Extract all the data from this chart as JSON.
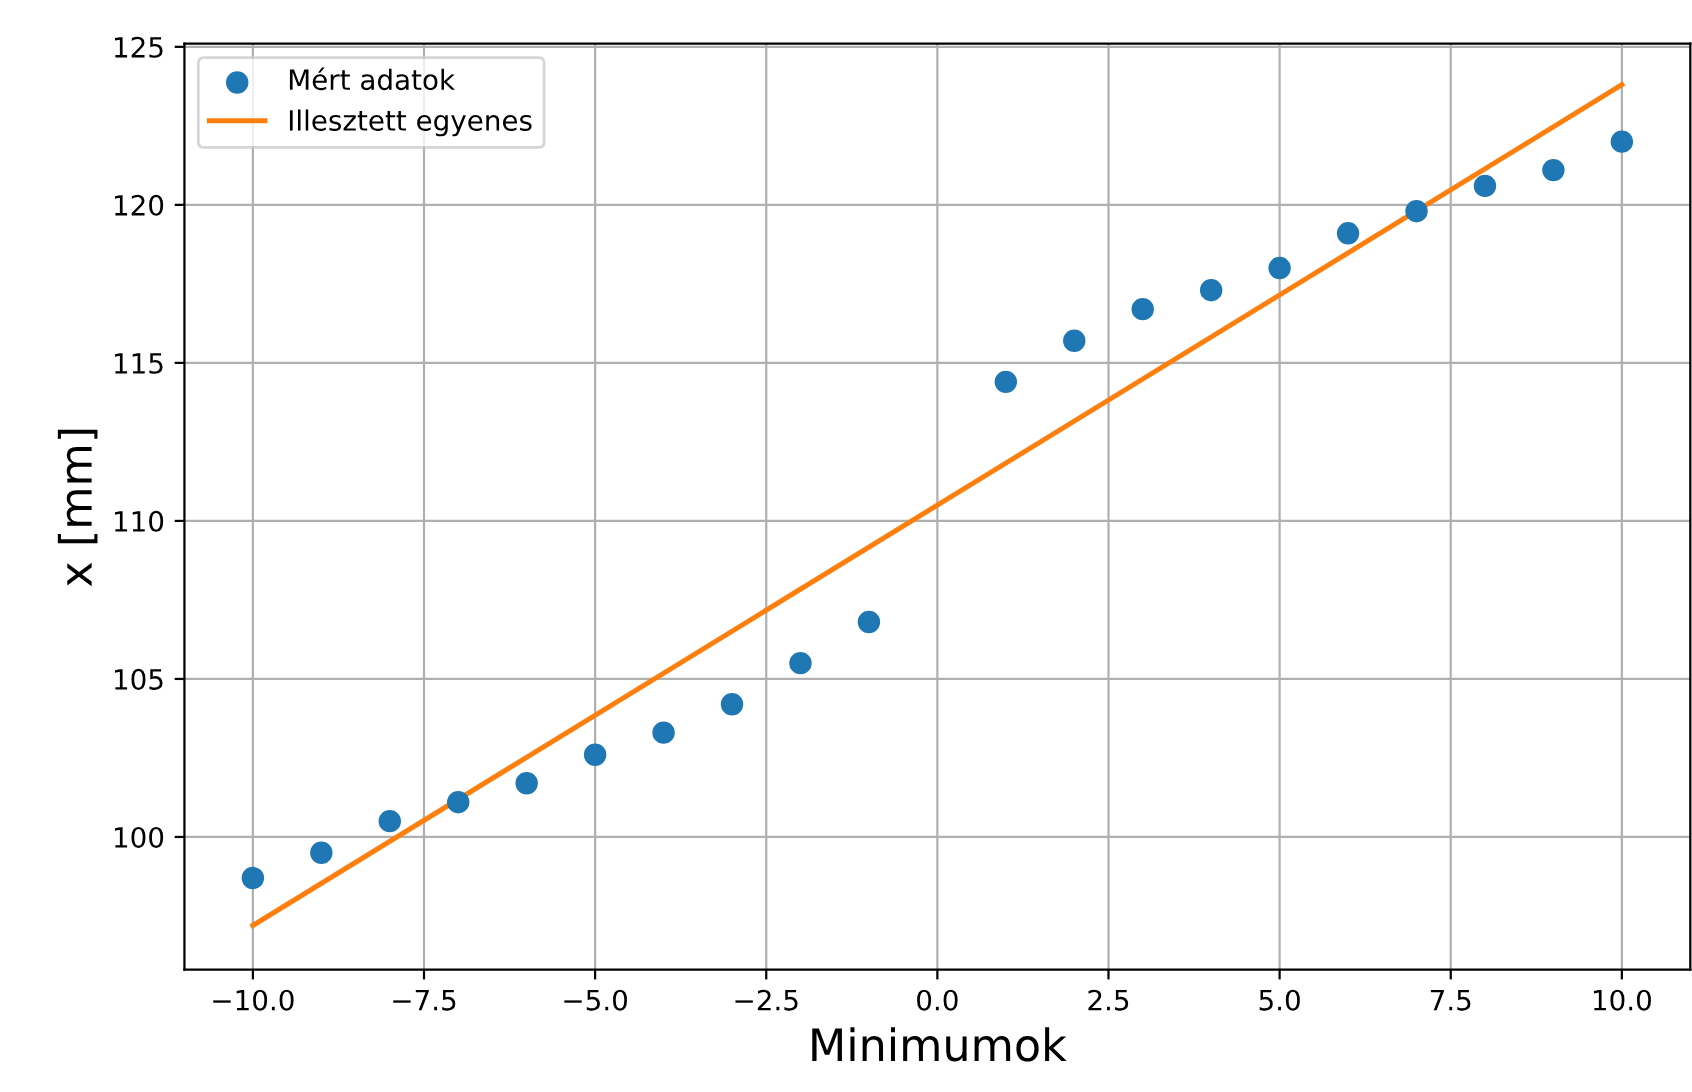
{
  "chart_data": {
    "type": "scatter",
    "xlabel": "Minimumok",
    "ylabel": "x [mm]",
    "xlim": [
      -11,
      11
    ],
    "xticks": [
      {
        "value": -10,
        "label": "−10.0"
      },
      {
        "value": -7.5,
        "label": "−7.5"
      },
      {
        "value": -5,
        "label": "−5.0"
      },
      {
        "value": -2.5,
        "label": "−2.5"
      },
      {
        "value": 0,
        "label": "0.0"
      },
      {
        "value": 2.5,
        "label": "2.5"
      },
      {
        "value": 5,
        "label": "5.0"
      },
      {
        "value": 7.5,
        "label": "7.5"
      },
      {
        "value": 10,
        "label": "10.0"
      }
    ],
    "ylim": [
      95.8,
      125.1
    ],
    "yticks": [
      100,
      105,
      110,
      115,
      120,
      125
    ],
    "grid": true,
    "legend": "top left",
    "series": [
      {
        "name": "Mért adatok",
        "marker": "circle",
        "color": "#1f77b4",
        "x": [
          -10,
          -9,
          -8,
          -7,
          -6,
          -5,
          -4,
          -3,
          -2,
          -1,
          1,
          2,
          3,
          4,
          5,
          6,
          7,
          8,
          9,
          10
        ],
        "values": [
          98.7,
          99.5,
          100.5,
          101.1,
          101.7,
          102.6,
          103.3,
          104.2,
          105.5,
          106.8,
          114.4,
          115.7,
          116.7,
          117.3,
          118.0,
          119.1,
          119.8,
          120.6,
          121.1,
          122.0
        ]
      },
      {
        "name": "Illesztett egyenes",
        "type": "line",
        "color": "#ff7f0e",
        "x": [
          -10,
          10
        ],
        "values": [
          97.2,
          123.8
        ]
      }
    ]
  }
}
